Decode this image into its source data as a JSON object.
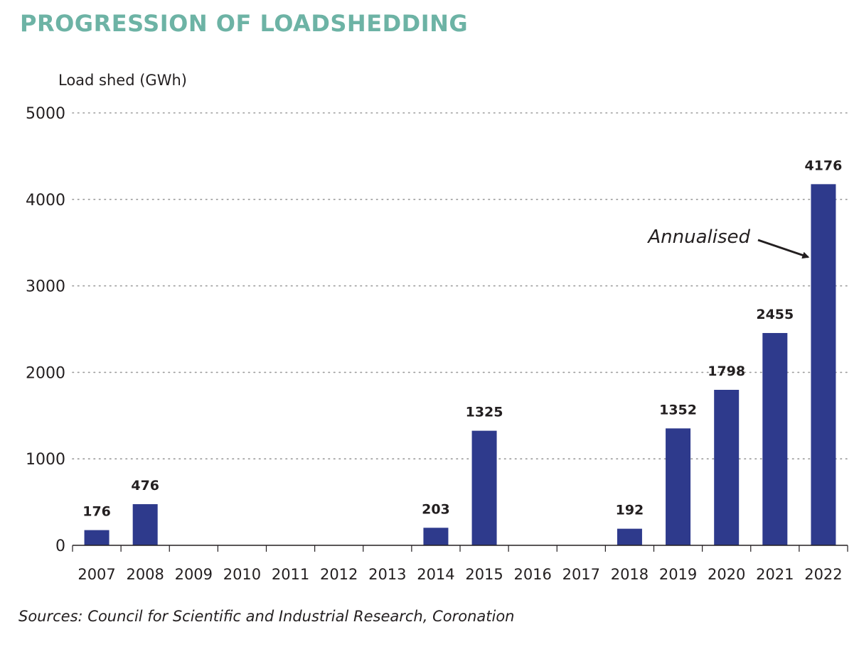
{
  "title": "PROGRESSION OF LOADSHEDDING",
  "source": "Sources: Council for Scientific and Industrial Research, Coronation",
  "colors": {
    "bar": "#2e3a8c",
    "title": "#6db3a5",
    "grid": "#9a9a9a",
    "text": "#231f20"
  },
  "chart_data": {
    "type": "bar",
    "ylabel": "Load shed (GWh)",
    "ylim": [
      0,
      5000
    ],
    "yticks": [
      0,
      1000,
      2000,
      3000,
      4000,
      5000
    ],
    "grid": "horizontal-dotted",
    "categories": [
      "2007",
      "2008",
      "2009",
      "2010",
      "2011",
      "2012",
      "2013",
      "2014",
      "2015",
      "2016",
      "2017",
      "2018",
      "2019",
      "2020",
      "2021",
      "2022"
    ],
    "values": [
      176,
      476,
      0,
      0,
      0,
      0,
      0,
      203,
      1325,
      0,
      0,
      192,
      1352,
      1798,
      2455,
      4176
    ],
    "data_labels": [
      "176",
      "476",
      "",
      "",
      "",
      "",
      "",
      "203",
      "1325",
      "",
      "",
      "192",
      "1352",
      "1798",
      "2455",
      "4176"
    ],
    "annotations": [
      {
        "text": "Annualised",
        "target": "2022"
      }
    ]
  }
}
